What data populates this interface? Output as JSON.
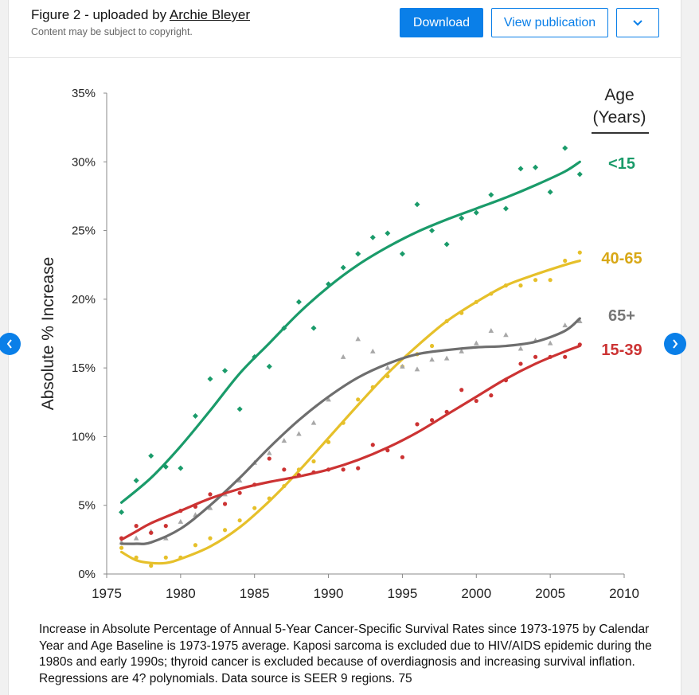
{
  "header": {
    "title_prefix": "Figure 2 - uploaded by ",
    "author": "Archie Bleyer",
    "subtitle": "Content may be subject to copyright.",
    "download_label": "Download",
    "view_label": "View publication"
  },
  "icons": {
    "more": "chevron-down-icon",
    "prev": "chevron-left-icon",
    "next": "chevron-right-icon"
  },
  "colors": {
    "accent": "#0a7fe8"
  },
  "caption": "Increase in Absolute Percentage of Annual 5-Year Cancer-Specific Survival Rates since 1973-1975 by Calendar Year and Age Baseline is 1973-1975 average. Kaposi sarcoma is excluded due to HIV/AIDS epidemic during the 1980s and early 1990s; thyroid cancer is excluded because of overdiagnosis and increasing survival inflation. Regressions are 4? polynomials. Data source is SEER 9 regions. 75",
  "chart_data": {
    "type": "scatter",
    "ylabel": "Absolute % Increase",
    "xlabel": "",
    "legend_title": [
      "Age",
      "(Years)"
    ],
    "legend_placement": "right",
    "xlim": [
      1975,
      2010
    ],
    "ylim": [
      0,
      35
    ],
    "x_ticks": [
      1975,
      1980,
      1985,
      1990,
      1995,
      2000,
      2005,
      2010
    ],
    "y_ticks": [
      0,
      5,
      10,
      15,
      20,
      25,
      30,
      35
    ],
    "y_tick_labels": [
      "0%",
      "5%",
      "10%",
      "15%",
      "20%",
      "25%",
      "30%",
      "35%"
    ],
    "series": [
      {
        "name": "<15",
        "color": "#1a9b6a",
        "marker": "diamond",
        "points": [
          [
            1976,
            4.5
          ],
          [
            1977,
            6.8
          ],
          [
            1978,
            8.6
          ],
          [
            1979,
            7.8
          ],
          [
            1980,
            7.7
          ],
          [
            1981,
            11.5
          ],
          [
            1982,
            14.2
          ],
          [
            1983,
            14.8
          ],
          [
            1984,
            12.0
          ],
          [
            1985,
            15.8
          ],
          [
            1986,
            15.1
          ],
          [
            1987,
            17.9
          ],
          [
            1988,
            19.8
          ],
          [
            1989,
            17.9
          ],
          [
            1990,
            21.1
          ],
          [
            1991,
            22.3
          ],
          [
            1992,
            23.3
          ],
          [
            1993,
            24.5
          ],
          [
            1994,
            24.8
          ],
          [
            1995,
            23.3
          ],
          [
            1996,
            26.9
          ],
          [
            1997,
            25.0
          ],
          [
            1998,
            24.0
          ],
          [
            1999,
            25.9
          ],
          [
            2000,
            26.3
          ],
          [
            2001,
            27.6
          ],
          [
            2002,
            26.6
          ],
          [
            2003,
            29.5
          ],
          [
            2004,
            29.6
          ],
          [
            2005,
            27.8
          ],
          [
            2006,
            31.0
          ],
          [
            2007,
            29.1
          ]
        ],
        "trend": [
          [
            1976,
            5.2
          ],
          [
            1978,
            7.0
          ],
          [
            1980,
            9.3
          ],
          [
            1982,
            11.9
          ],
          [
            1984,
            14.6
          ],
          [
            1986,
            16.8
          ],
          [
            1988,
            19.0
          ],
          [
            1990,
            20.9
          ],
          [
            1992,
            22.5
          ],
          [
            1994,
            23.8
          ],
          [
            1996,
            24.9
          ],
          [
            1998,
            25.8
          ],
          [
            2000,
            26.6
          ],
          [
            2002,
            27.4
          ],
          [
            2004,
            28.3
          ],
          [
            2006,
            29.3
          ],
          [
            2007,
            30.0
          ]
        ]
      },
      {
        "name": "40-65",
        "color": "#e6c02a",
        "marker": "circle",
        "points": [
          [
            1976,
            1.9
          ],
          [
            1977,
            1.2
          ],
          [
            1978,
            0.6
          ],
          [
            1979,
            1.2
          ],
          [
            1980,
            1.2
          ],
          [
            1981,
            2.1
          ],
          [
            1982,
            2.6
          ],
          [
            1983,
            3.2
          ],
          [
            1984,
            3.9
          ],
          [
            1985,
            4.8
          ],
          [
            1986,
            5.5
          ],
          [
            1987,
            6.4
          ],
          [
            1988,
            7.6
          ],
          [
            1989,
            8.2
          ],
          [
            1990,
            9.6
          ],
          [
            1991,
            11.0
          ],
          [
            1992,
            12.7
          ],
          [
            1993,
            13.6
          ],
          [
            1994,
            14.4
          ],
          [
            1995,
            15.1
          ],
          [
            1996,
            16.0
          ],
          [
            1997,
            16.6
          ],
          [
            1998,
            18.4
          ],
          [
            1999,
            19.0
          ],
          [
            2000,
            19.8
          ],
          [
            2001,
            20.4
          ],
          [
            2002,
            21.0
          ],
          [
            2003,
            21.0
          ],
          [
            2004,
            21.4
          ],
          [
            2005,
            21.4
          ],
          [
            2006,
            22.8
          ],
          [
            2007,
            23.4
          ]
        ],
        "trend": [
          [
            1976,
            1.6
          ],
          [
            1977,
            1.0
          ],
          [
            1978,
            0.8
          ],
          [
            1979,
            0.8
          ],
          [
            1980,
            1.1
          ],
          [
            1982,
            2.0
          ],
          [
            1984,
            3.4
          ],
          [
            1986,
            5.3
          ],
          [
            1988,
            7.5
          ],
          [
            1990,
            9.9
          ],
          [
            1992,
            12.3
          ],
          [
            1994,
            14.6
          ],
          [
            1996,
            16.6
          ],
          [
            1998,
            18.4
          ],
          [
            2000,
            19.8
          ],
          [
            2002,
            21.0
          ],
          [
            2004,
            21.8
          ],
          [
            2006,
            22.5
          ],
          [
            2007,
            22.8
          ]
        ]
      },
      {
        "name": "65+",
        "color": "#909090",
        "marker": "triangle",
        "points": [
          [
            1976,
            2.3
          ],
          [
            1977,
            2.6
          ],
          [
            1978,
            3.1
          ],
          [
            1979,
            2.6
          ],
          [
            1980,
            3.8
          ],
          [
            1981,
            4.3
          ],
          [
            1982,
            4.8
          ],
          [
            1983,
            5.8
          ],
          [
            1984,
            6.8
          ],
          [
            1985,
            8.1
          ],
          [
            1986,
            8.8
          ],
          [
            1987,
            9.7
          ],
          [
            1988,
            10.2
          ],
          [
            1989,
            11.0
          ],
          [
            1990,
            12.7
          ],
          [
            1991,
            15.8
          ],
          [
            1992,
            17.1
          ],
          [
            1993,
            16.2
          ],
          [
            1994,
            15.0
          ],
          [
            1995,
            15.1
          ],
          [
            1996,
            14.9
          ],
          [
            1997,
            15.6
          ],
          [
            1998,
            15.7
          ],
          [
            1999,
            16.2
          ],
          [
            2000,
            16.8
          ],
          [
            2001,
            17.7
          ],
          [
            2002,
            17.4
          ],
          [
            2003,
            16.4
          ],
          [
            2004,
            17.0
          ],
          [
            2005,
            16.8
          ],
          [
            2006,
            18.1
          ],
          [
            2007,
            18.4
          ]
        ],
        "trend": [
          [
            1976,
            2.2
          ],
          [
            1977,
            2.2
          ],
          [
            1978,
            2.3
          ],
          [
            1980,
            3.3
          ],
          [
            1982,
            5.0
          ],
          [
            1984,
            7.0
          ],
          [
            1986,
            9.2
          ],
          [
            1988,
            11.2
          ],
          [
            1990,
            12.9
          ],
          [
            1992,
            14.3
          ],
          [
            1994,
            15.3
          ],
          [
            1996,
            16.0
          ],
          [
            1998,
            16.3
          ],
          [
            2000,
            16.5
          ],
          [
            2002,
            16.6
          ],
          [
            2004,
            16.9
          ],
          [
            2006,
            17.7
          ],
          [
            2007,
            18.6
          ]
        ]
      },
      {
        "name": "15-39",
        "color": "#cc3333",
        "marker": "circle",
        "points": [
          [
            1976,
            2.6
          ],
          [
            1977,
            3.5
          ],
          [
            1978,
            3.0
          ],
          [
            1979,
            3.5
          ],
          [
            1980,
            4.6
          ],
          [
            1981,
            4.9
          ],
          [
            1982,
            5.8
          ],
          [
            1983,
            5.1
          ],
          [
            1984,
            5.9
          ],
          [
            1985,
            6.5
          ],
          [
            1986,
            8.4
          ],
          [
            1987,
            7.6
          ],
          [
            1988,
            7.2
          ],
          [
            1989,
            7.4
          ],
          [
            1990,
            7.6
          ],
          [
            1991,
            7.6
          ],
          [
            1992,
            7.7
          ],
          [
            1993,
            9.4
          ],
          [
            1994,
            9.0
          ],
          [
            1995,
            8.5
          ],
          [
            1996,
            10.9
          ],
          [
            1997,
            11.2
          ],
          [
            1998,
            11.8
          ],
          [
            1999,
            13.4
          ],
          [
            2000,
            12.6
          ],
          [
            2001,
            13.0
          ],
          [
            2002,
            14.1
          ],
          [
            2003,
            15.3
          ],
          [
            2004,
            15.8
          ],
          [
            2005,
            15.8
          ],
          [
            2006,
            15.8
          ],
          [
            2007,
            16.7
          ]
        ],
        "trend": [
          [
            1976,
            2.5
          ],
          [
            1977,
            3.1
          ],
          [
            1978,
            3.7
          ],
          [
            1980,
            4.6
          ],
          [
            1982,
            5.5
          ],
          [
            1984,
            6.2
          ],
          [
            1986,
            6.7
          ],
          [
            1988,
            7.1
          ],
          [
            1990,
            7.6
          ],
          [
            1992,
            8.3
          ],
          [
            1994,
            9.2
          ],
          [
            1996,
            10.3
          ],
          [
            1998,
            11.6
          ],
          [
            2000,
            12.9
          ],
          [
            2002,
            14.2
          ],
          [
            2004,
            15.3
          ],
          [
            2006,
            16.2
          ],
          [
            2007,
            16.6
          ]
        ]
      }
    ]
  }
}
